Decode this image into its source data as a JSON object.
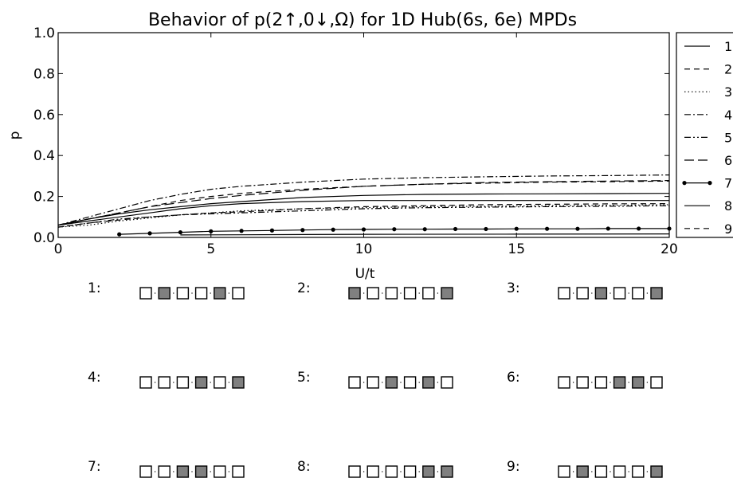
{
  "chart_data": {
    "type": "line",
    "title": "Behavior of p(2↑,0↓,Ω) for 1D Hub(6s, 6e) MPDs",
    "xlabel": "U/t",
    "ylabel": "p",
    "xlim": [
      0,
      20
    ],
    "ylim": [
      0,
      1.0
    ],
    "xticks": [
      "0",
      "5",
      "10",
      "15",
      "20"
    ],
    "yticks": [
      "0.0",
      "0.2",
      "0.4",
      "0.6",
      "0.8",
      "1.0"
    ],
    "grid": false,
    "legend_position": "right-outside",
    "series": [
      {
        "name": "1",
        "style": "solid",
        "x": [
          0,
          1,
          2,
          3,
          4,
          5,
          6,
          8,
          10,
          12,
          14,
          16,
          18,
          20
        ],
        "y": [
          0.06,
          0.08,
          0.1,
          0.12,
          0.14,
          0.155,
          0.165,
          0.175,
          0.18,
          0.18,
          0.18,
          0.18,
          0.18,
          0.18
        ]
      },
      {
        "name": "2",
        "style": "dashed",
        "x": [
          0,
          1,
          2,
          3,
          4,
          5,
          6,
          8,
          10,
          12,
          14,
          16,
          18,
          20
        ],
        "y": [
          0.06,
          0.09,
          0.12,
          0.15,
          0.18,
          0.2,
          0.215,
          0.235,
          0.25,
          0.26,
          0.265,
          0.27,
          0.272,
          0.275
        ]
      },
      {
        "name": "3",
        "style": "dotted",
        "x": [
          0,
          1,
          2,
          3,
          4,
          5,
          6,
          8,
          10,
          12,
          14,
          16,
          18,
          20
        ],
        "y": [
          0.05,
          0.06,
          0.08,
          0.095,
          0.11,
          0.12,
          0.13,
          0.14,
          0.145,
          0.15,
          0.152,
          0.155,
          0.157,
          0.16
        ]
      },
      {
        "name": "4",
        "style": "dashdot",
        "x": [
          0,
          1,
          2,
          3,
          4,
          5,
          6,
          8,
          10,
          12,
          14,
          16,
          18,
          20
        ],
        "y": [
          0.06,
          0.1,
          0.14,
          0.18,
          0.21,
          0.235,
          0.25,
          0.27,
          0.285,
          0.292,
          0.296,
          0.3,
          0.302,
          0.305
        ]
      },
      {
        "name": "5",
        "style": "dashdotdot",
        "x": [
          0,
          1,
          2,
          3,
          4,
          5,
          6,
          8,
          10,
          12,
          14,
          16,
          18,
          20
        ],
        "y": [
          0.05,
          0.07,
          0.09,
          0.1,
          0.11,
          0.115,
          0.12,
          0.13,
          0.14,
          0.145,
          0.148,
          0.15,
          0.152,
          0.155
        ]
      },
      {
        "name": "6",
        "style": "longdash",
        "x": [
          0,
          1,
          2,
          3,
          4,
          5,
          6,
          8,
          10,
          12,
          14,
          16,
          18,
          20
        ],
        "y": [
          0.06,
          0.09,
          0.12,
          0.15,
          0.17,
          0.19,
          0.205,
          0.23,
          0.25,
          0.26,
          0.268,
          0.272,
          0.275,
          0.278
        ]
      },
      {
        "name": "7",
        "style": "solid-marker",
        "x": [
          2,
          3,
          4,
          5,
          6,
          7,
          8,
          9,
          10,
          11,
          12,
          13,
          14,
          15,
          16,
          17,
          18,
          19,
          20
        ],
        "y": [
          0.015,
          0.02,
          0.025,
          0.03,
          0.032,
          0.034,
          0.036,
          0.038,
          0.039,
          0.04,
          0.04,
          0.041,
          0.041,
          0.042,
          0.042,
          0.042,
          0.043,
          0.043,
          0.043
        ]
      },
      {
        "name": "8",
        "style": "solid",
        "x": [
          0,
          1,
          2,
          3,
          4,
          5,
          6,
          8,
          10,
          12,
          14,
          16,
          18,
          20
        ],
        "y": [
          0.06,
          0.09,
          0.115,
          0.135,
          0.15,
          0.165,
          0.175,
          0.195,
          0.205,
          0.21,
          0.212,
          0.213,
          0.214,
          0.215
        ]
      },
      {
        "name": "9",
        "style": "dashed",
        "x": [
          0,
          1,
          2,
          3,
          4,
          5,
          6,
          8,
          10,
          12,
          14,
          16,
          18,
          20
        ],
        "y": [
          0.05,
          0.07,
          0.085,
          0.1,
          0.11,
          0.12,
          0.125,
          0.14,
          0.15,
          0.155,
          0.16,
          0.162,
          0.164,
          0.165
        ]
      }
    ],
    "extra_lines": [
      {
        "series_ref": "7",
        "style": "solid",
        "x": [
          4,
          6,
          10,
          15,
          20
        ],
        "y": [
          0.012,
          0.013,
          0.015,
          0.016,
          0.017
        ]
      }
    ]
  },
  "diagrams": [
    {
      "label": "1:",
      "sites": [
        false,
        true,
        false,
        false,
        true,
        false
      ]
    },
    {
      "label": "2:",
      "sites": [
        true,
        false,
        false,
        false,
        false,
        true
      ]
    },
    {
      "label": "3:",
      "sites": [
        false,
        false,
        true,
        false,
        false,
        true
      ]
    },
    {
      "label": "4:",
      "sites": [
        false,
        false,
        false,
        true,
        false,
        true
      ]
    },
    {
      "label": "5:",
      "sites": [
        false,
        false,
        true,
        false,
        true,
        false
      ]
    },
    {
      "label": "6:",
      "sites": [
        false,
        false,
        false,
        true,
        true,
        false
      ]
    },
    {
      "label": "7:",
      "sites": [
        false,
        false,
        true,
        true,
        false,
        false
      ]
    },
    {
      "label": "8:",
      "sites": [
        false,
        false,
        false,
        false,
        true,
        true
      ]
    },
    {
      "label": "9:",
      "sites": [
        false,
        true,
        false,
        false,
        false,
        true
      ]
    }
  ],
  "colors": {
    "filled_site": "#808080",
    "empty_site": "#ffffff",
    "line": "#000000"
  }
}
